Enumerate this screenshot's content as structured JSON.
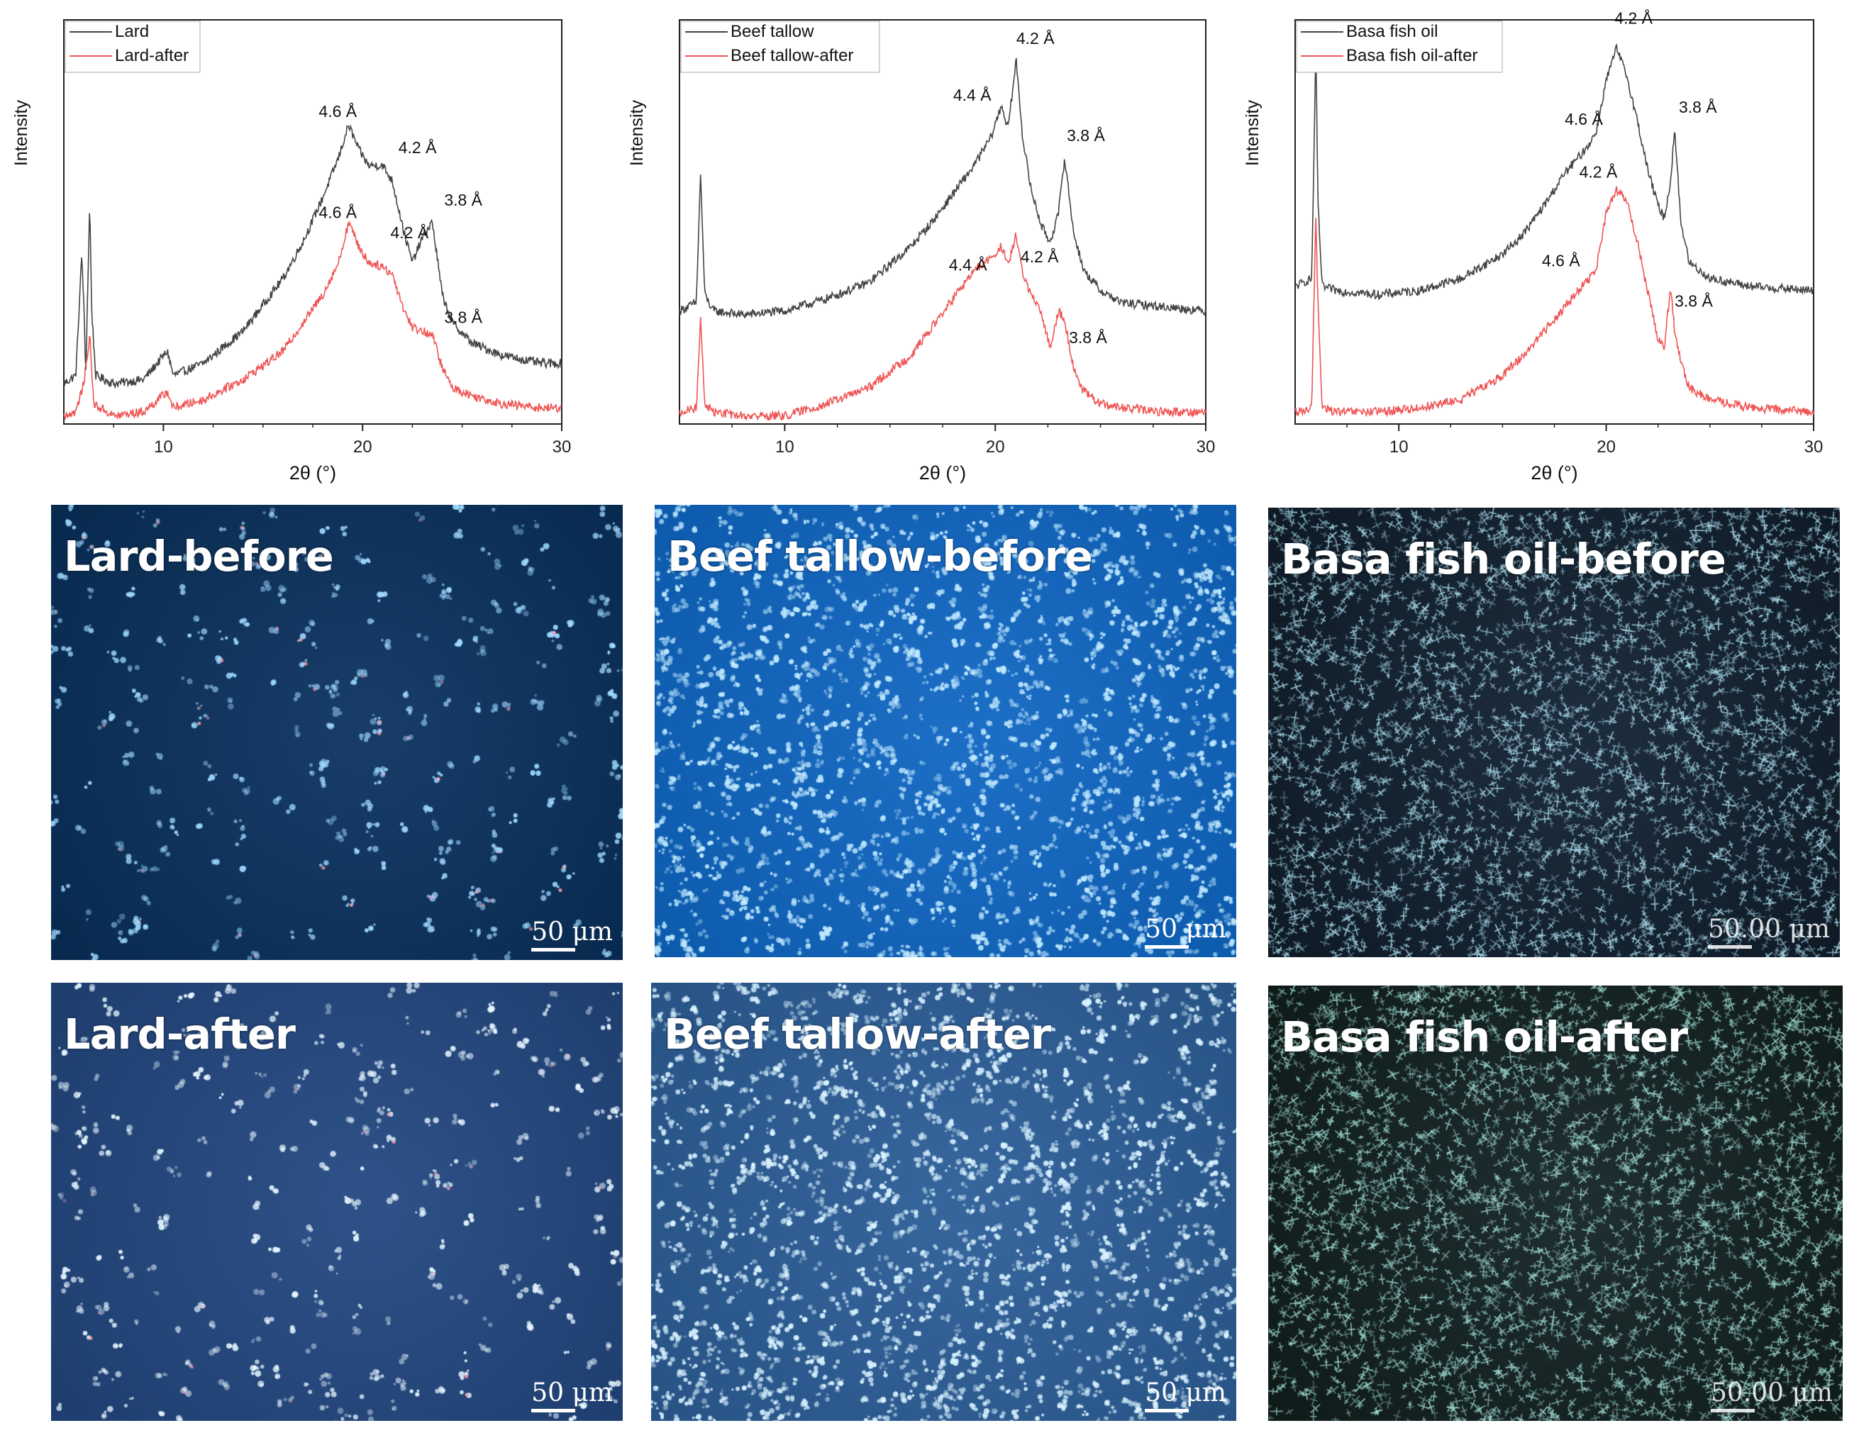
{
  "chart_data": [
    {
      "type": "line",
      "ylabel": "Intensity",
      "xlabel": "2θ (°)",
      "xlim": [
        5,
        30
      ],
      "xticks": [
        "10",
        "20",
        "30"
      ],
      "grid": false,
      "legend_position": "top-left",
      "series": [
        {
          "name": "Lard",
          "color": "#444444",
          "x": [
            5.0,
            5.6,
            5.9,
            6.0,
            6.1,
            6.3,
            6.4,
            6.6,
            7.5,
            9,
            10.2,
            10.5,
            12,
            14,
            16,
            17,
            18,
            18.8,
            19.3,
            19.8,
            20.3,
            21,
            21.5,
            22.1,
            22.5,
            23.0,
            23.5,
            24.0,
            24.5,
            25.5,
            27,
            29,
            30
          ],
          "y": [
            0.1,
            0.12,
            0.42,
            0.3,
            0.12,
            0.55,
            0.28,
            0.12,
            0.1,
            0.11,
            0.18,
            0.12,
            0.15,
            0.23,
            0.36,
            0.45,
            0.56,
            0.66,
            0.74,
            0.68,
            0.64,
            0.64,
            0.6,
            0.47,
            0.4,
            0.46,
            0.5,
            0.32,
            0.25,
            0.2,
            0.17,
            0.15,
            0.15
          ]
        },
        {
          "name": "Lard-after",
          "color": "#ef5555",
          "x": [
            5.0,
            5.6,
            6.0,
            6.3,
            6.5,
            7.5,
            9,
            10.2,
            10.5,
            12,
            14,
            16,
            17,
            18,
            18.8,
            19.3,
            19.8,
            20.3,
            21,
            21.5,
            22.1,
            22.5,
            23.0,
            23.5,
            24.0,
            24.5,
            25.5,
            27,
            29,
            30
          ],
          "y": [
            0.02,
            0.03,
            0.1,
            0.22,
            0.05,
            0.02,
            0.03,
            0.08,
            0.04,
            0.06,
            0.11,
            0.18,
            0.25,
            0.32,
            0.4,
            0.5,
            0.44,
            0.4,
            0.39,
            0.37,
            0.28,
            0.24,
            0.23,
            0.22,
            0.14,
            0.09,
            0.07,
            0.05,
            0.04,
            0.04
          ]
        }
      ],
      "annotations": [
        {
          "text": "4.6 Å",
          "x": 17.8,
          "y": 0.76
        },
        {
          "text": "4.2 Å",
          "x": 21.8,
          "y": 0.67
        },
        {
          "text": "3.8 Å",
          "x": 24.1,
          "y": 0.54
        },
        {
          "text": "4.6 Å",
          "x": 17.8,
          "y": 0.51
        },
        {
          "text": "4.2 Å",
          "x": 21.4,
          "y": 0.46
        },
        {
          "text": "3.8 Å",
          "x": 24.1,
          "y": 0.25
        }
      ]
    },
    {
      "type": "line",
      "ylabel": "Intensity",
      "xlabel": "2θ (°)",
      "xlim": [
        5,
        30
      ],
      "xticks": [
        "10",
        "20",
        "30"
      ],
      "grid": false,
      "legend_position": "top-left",
      "series": [
        {
          "name": "Beef tallow",
          "color": "#444444",
          "x": [
            5.0,
            5.8,
            6.0,
            6.2,
            6.6,
            8,
            10,
            12,
            14,
            16,
            17,
            18,
            19,
            19.8,
            20.3,
            20.6,
            21.0,
            21.3,
            21.7,
            22.2,
            22.6,
            23.0,
            23.3,
            23.7,
            24.2,
            25,
            26,
            28,
            30
          ],
          "y": [
            0.28,
            0.3,
            0.62,
            0.32,
            0.28,
            0.27,
            0.28,
            0.31,
            0.35,
            0.44,
            0.5,
            0.57,
            0.64,
            0.71,
            0.79,
            0.73,
            0.9,
            0.71,
            0.58,
            0.49,
            0.45,
            0.52,
            0.66,
            0.48,
            0.38,
            0.33,
            0.3,
            0.29,
            0.28
          ]
        },
        {
          "name": "Beef tallow-after",
          "color": "#ef5555",
          "x": [
            5.0,
            5.8,
            6.0,
            6.2,
            6.6,
            8,
            10,
            12,
            14,
            16,
            17,
            18,
            19,
            19.8,
            20.3,
            20.6,
            21.0,
            21.3,
            21.7,
            22.2,
            22.6,
            23.0,
            23.3,
            23.7,
            24.2,
            25,
            26,
            28,
            30
          ],
          "y": [
            0.03,
            0.04,
            0.26,
            0.05,
            0.03,
            0.02,
            0.02,
            0.05,
            0.09,
            0.17,
            0.24,
            0.31,
            0.38,
            0.41,
            0.44,
            0.39,
            0.47,
            0.37,
            0.32,
            0.27,
            0.19,
            0.28,
            0.26,
            0.14,
            0.08,
            0.05,
            0.04,
            0.03,
            0.03
          ]
        }
      ],
      "annotations": [
        {
          "text": "4.4 Å",
          "x": 18.0,
          "y": 0.8
        },
        {
          "text": "4.2 Å",
          "x": 21.0,
          "y": 0.94
        },
        {
          "text": "3.8 Å",
          "x": 23.4,
          "y": 0.7
        },
        {
          "text": "4.4 Å",
          "x": 17.8,
          "y": 0.38
        },
        {
          "text": "4.2 Å",
          "x": 21.2,
          "y": 0.4
        },
        {
          "text": "3.8 Å",
          "x": 23.5,
          "y": 0.2
        }
      ]
    },
    {
      "type": "line",
      "ylabel": "Intensity",
      "xlabel": "2θ (°)",
      "xlim": [
        5,
        30
      ],
      "xticks": [
        "10",
        "20",
        "30"
      ],
      "grid": false,
      "legend_position": "top-left",
      "series": [
        {
          "name": "Basa fish oil",
          "color": "#444444",
          "x": [
            5.0,
            5.8,
            6.0,
            6.1,
            6.3,
            7,
            9,
            11,
            13,
            15,
            16,
            17,
            18,
            19,
            19.5,
            20.0,
            20.5,
            21.0,
            21.5,
            22.0,
            22.5,
            22.8,
            23.1,
            23.3,
            23.6,
            24,
            25,
            27,
            30
          ],
          "y": [
            0.34,
            0.36,
            0.93,
            0.55,
            0.34,
            0.33,
            0.32,
            0.33,
            0.36,
            0.42,
            0.47,
            0.54,
            0.62,
            0.68,
            0.72,
            0.85,
            0.93,
            0.86,
            0.75,
            0.63,
            0.54,
            0.51,
            0.6,
            0.73,
            0.5,
            0.4,
            0.36,
            0.34,
            0.33
          ]
        },
        {
          "name": "Basa fish oil-after",
          "color": "#ef5555",
          "x": [
            5.0,
            5.8,
            6.0,
            6.1,
            6.3,
            7,
            9,
            11,
            13,
            15,
            16,
            17,
            18,
            19,
            19.5,
            20.0,
            20.5,
            21.0,
            21.5,
            22.0,
            22.5,
            22.8,
            23.1,
            23.3,
            23.6,
            24,
            25,
            27,
            30
          ],
          "y": [
            0.03,
            0.04,
            0.52,
            0.3,
            0.04,
            0.03,
            0.03,
            0.04,
            0.06,
            0.12,
            0.17,
            0.23,
            0.29,
            0.35,
            0.38,
            0.52,
            0.58,
            0.55,
            0.45,
            0.33,
            0.21,
            0.19,
            0.34,
            0.23,
            0.15,
            0.09,
            0.06,
            0.04,
            0.03
          ]
        }
      ],
      "annotations": [
        {
          "text": "4.6 Å",
          "x": 18.0,
          "y": 0.74
        },
        {
          "text": "4.2 Å",
          "x": 20.4,
          "y": 0.99
        },
        {
          "text": "3.8 Å",
          "x": 23.5,
          "y": 0.77
        },
        {
          "text": "4.2 Å",
          "x": 18.7,
          "y": 0.61
        },
        {
          "text": "4.6 Å",
          "x": 16.9,
          "y": 0.39
        },
        {
          "text": "3.8 Å",
          "x": 23.3,
          "y": 0.29
        }
      ]
    }
  ],
  "micrographs": [
    {
      "label": "Lard-before",
      "scale": "50 μm",
      "bg": "#05264a",
      "crystal": "#9fd9ff",
      "density": "sparse"
    },
    {
      "label": "Beef tallow-before",
      "scale": "50 μm",
      "bg": "#0a57a8",
      "crystal": "#bfe9ff",
      "density": "dense"
    },
    {
      "label": "Basa fish oil-before",
      "scale": "50.00 μm",
      "bg": "#0b1620",
      "crystal": "#a7d8e8",
      "density": "very-dense"
    },
    {
      "label": "Lard-after",
      "scale": "50 μm",
      "bg": "#1b3a6a",
      "crystal": "#e6f6ff",
      "density": "sparse"
    },
    {
      "label": "Beef tallow-after",
      "scale": "50 μm",
      "bg": "#244f80",
      "crystal": "#d8f2ff",
      "density": "dense"
    },
    {
      "label": "Basa fish oil-after",
      "scale": "50.00 μm",
      "bg": "#0c1714",
      "crystal": "#9fd8d0",
      "density": "very-dense"
    }
  ]
}
